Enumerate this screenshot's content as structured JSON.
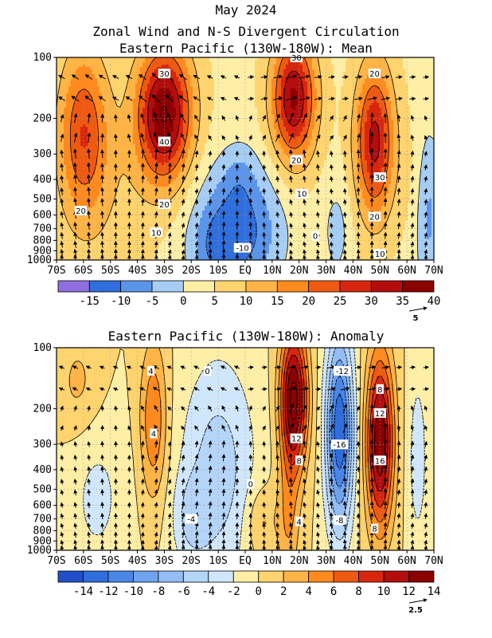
{
  "header": {
    "date": "May 2024",
    "title": "Zonal Wind and N-S Divergent Circulation"
  },
  "lat_ticks": [
    "70S",
    "60S",
    "50S",
    "40S",
    "30S",
    "20S",
    "10S",
    "EQ",
    "10N",
    "20N",
    "30N",
    "40N",
    "50N",
    "60N",
    "70N"
  ],
  "pressure_ticks": [
    100,
    200,
    300,
    400,
    500,
    600,
    700,
    800,
    900,
    1000
  ],
  "chart_data": [
    {
      "type": "heatmap",
      "title": "Eastern Pacific (130W-180W): Mean",
      "x": [
        "70S",
        "60S",
        "50S",
        "40S",
        "30S",
        "20S",
        "10S",
        "EQ",
        "10N",
        "20N",
        "30N",
        "40N",
        "50N",
        "60N",
        "70N"
      ],
      "y_pressure_hPa": [
        100,
        200,
        300,
        400,
        500,
        600,
        700,
        800,
        900,
        1000
      ],
      "y_scale": "log-pressure",
      "colorbar": {
        "labels": [
          "-15",
          "-10",
          "-5",
          "0",
          "5",
          "10",
          "15",
          "20",
          "25",
          "30",
          "35",
          "40"
        ],
        "colors": [
          "#8f6fe0",
          "#2f6fdd",
          "#5b95ea",
          "#a6cdf4",
          "#ffeea6",
          "#ffd36e",
          "#ffb446",
          "#ff8a1e",
          "#ef5a12",
          "#d8260e",
          "#b30d0d",
          "#8c0000"
        ]
      },
      "vector_reference": "5",
      "jets": [
        {
          "lat": -30,
          "pressure": 200,
          "max": 40
        },
        {
          "lat": -60,
          "pressure": 250,
          "max": 25
        },
        {
          "lat": 18,
          "pressure": 180,
          "max": 35
        },
        {
          "lat": 48,
          "pressure": 250,
          "max": 30
        }
      ],
      "contour_labels": [
        {
          "text": "30",
          "lat": -30,
          "p": 120
        },
        {
          "text": "40",
          "lat": -30,
          "p": 260
        },
        {
          "text": "20",
          "lat": -30,
          "p": 530
        },
        {
          "text": "10",
          "lat": -33,
          "p": 730
        },
        {
          "text": "20",
          "lat": -61,
          "p": 570
        },
        {
          "text": "30",
          "lat": 19,
          "p": 100
        },
        {
          "text": "20",
          "lat": 19,
          "p": 320
        },
        {
          "text": "10",
          "lat": 21,
          "p": 470
        },
        {
          "text": "0",
          "lat": 26,
          "p": 760
        },
        {
          "text": "-10",
          "lat": -1,
          "p": 870
        },
        {
          "text": "20",
          "lat": 48,
          "p": 120
        },
        {
          "text": "30",
          "lat": 50,
          "p": 390
        },
        {
          "text": "20",
          "lat": 48,
          "p": 610
        },
        {
          "text": "10",
          "lat": 50,
          "p": 930
        }
      ]
    },
    {
      "type": "heatmap",
      "title": "Eastern Pacific (130W-180W): Anomaly",
      "x": [
        "70S",
        "60S",
        "50S",
        "40S",
        "30S",
        "20S",
        "10S",
        "EQ",
        "10N",
        "20N",
        "30N",
        "40N",
        "50N",
        "60N",
        "70N"
      ],
      "y_pressure_hPa": [
        100,
        200,
        300,
        400,
        500,
        600,
        700,
        800,
        900,
        1000
      ],
      "y_scale": "log-pressure",
      "colorbar": {
        "labels": [
          "-14",
          "-12",
          "-10",
          "-8",
          "-6",
          "-4",
          "-2",
          "0",
          "2",
          "4",
          "6",
          "8",
          "10",
          "12",
          "14"
        ],
        "colors": [
          "#1f4fc8",
          "#2f6fdd",
          "#4a86e6",
          "#6fa3ee",
          "#93bdf4",
          "#b4d4f8",
          "#d0e7fb",
          "#ffeea6",
          "#ffd36e",
          "#ffb446",
          "#ff8a1e",
          "#ef5a12",
          "#d8260e",
          "#b30d0d",
          "#8c0000"
        ]
      },
      "vector_reference": "2.5",
      "contour_labels": [
        {
          "text": "4",
          "lat": -35,
          "p": 130
        },
        {
          "text": "0",
          "lat": -14,
          "p": 130
        },
        {
          "text": "4",
          "lat": -34,
          "p": 265
        },
        {
          "text": "-12",
          "lat": 36,
          "p": 130
        },
        {
          "text": "8",
          "lat": 50,
          "p": 160
        },
        {
          "text": "12",
          "lat": 50,
          "p": 210
        },
        {
          "text": "12",
          "lat": 19,
          "p": 280
        },
        {
          "text": "-16",
          "lat": 35,
          "p": 300
        },
        {
          "text": "8",
          "lat": 20,
          "p": 360
        },
        {
          "text": "16",
          "lat": 50,
          "p": 360
        },
        {
          "text": "0",
          "lat": 2,
          "p": 470
        },
        {
          "text": "-4",
          "lat": -20,
          "p": 700
        },
        {
          "text": "-8",
          "lat": 35,
          "p": 710
        },
        {
          "text": "4",
          "lat": 20,
          "p": 720
        },
        {
          "text": "8",
          "lat": 48,
          "p": 780
        }
      ]
    }
  ]
}
